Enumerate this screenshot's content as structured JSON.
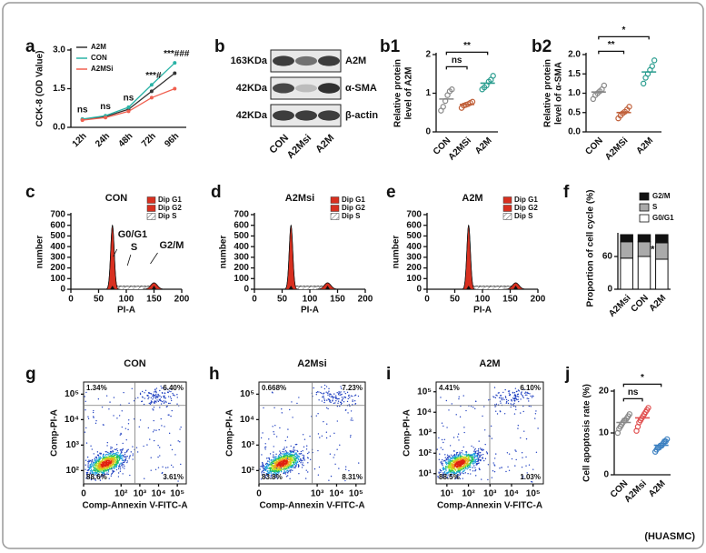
{
  "footer": "(HUASMC)",
  "chart_data": [
    {
      "type": "line",
      "panel": "a",
      "ylabel": "CCK-8 (OD Value)",
      "categories": [
        "12h",
        "24h",
        "48h",
        "72h",
        "96h"
      ],
      "series": [
        {
          "name": "A2M",
          "color": "#333333",
          "values": [
            0.3,
            0.42,
            0.7,
            1.4,
            2.1
          ]
        },
        {
          "name": "CON",
          "color": "#2ab3a6",
          "values": [
            0.32,
            0.45,
            0.78,
            1.65,
            2.5
          ]
        },
        {
          "name": "A2MSi",
          "color": "#f06050",
          "values": [
            0.28,
            0.38,
            0.62,
            1.15,
            1.5
          ]
        }
      ],
      "ylim": [
        0,
        3
      ],
      "yticks": [
        {
          "value": 0,
          "label": "0.0"
        },
        1.5,
        {
          "value": 3,
          "label": "3.0"
        }
      ],
      "annotations": [
        "ns",
        "ns",
        "ns",
        "***#",
        "***###"
      ]
    },
    {
      "type": "blot",
      "panel": "b",
      "weights": [
        "163KDa",
        "42KDa",
        "42KDa"
      ],
      "proteins": [
        "A2M",
        "α-SMA",
        "β-actin"
      ],
      "lanes": [
        "CON",
        "A2Msi",
        "A2M"
      ]
    },
    {
      "type": "dot",
      "panel": "b1",
      "ylabel": [
        "Relative protein",
        "level of A2M"
      ],
      "categories": [
        "CON",
        "A2MSi",
        "A2M"
      ],
      "colors": [
        "#888888",
        "#c0603a",
        "#2a9d8f"
      ],
      "values": [
        0.85,
        0.71,
        1.26
      ],
      "points": [
        [
          0.55,
          0.65,
          0.8,
          0.95,
          1.05,
          1.1
        ],
        [
          0.62,
          0.68,
          0.7,
          0.72,
          0.75,
          0.78
        ],
        [
          1.1,
          1.15,
          1.2,
          1.3,
          1.35,
          1.45
        ]
      ],
      "ylim": [
        0,
        2
      ],
      "yticks": [
        0,
        1,
        2
      ],
      "annotations": [
        "ns",
        "**"
      ]
    },
    {
      "type": "dot",
      "panel": "b2",
      "ylabel": [
        "Relative protein",
        "level of α-SMA"
      ],
      "categories": [
        "CON",
        "A2MSi",
        "A2M"
      ],
      "colors": [
        "#888888",
        "#c0603a",
        "#2a9d8f"
      ],
      "values": [
        1.03,
        0.5,
        1.55
      ],
      "points": [
        [
          0.85,
          0.95,
          1.0,
          1.05,
          1.1,
          1.2
        ],
        [
          0.35,
          0.42,
          0.48,
          0.52,
          0.58,
          0.65
        ],
        [
          1.25,
          1.4,
          1.5,
          1.6,
          1.7,
          1.85
        ]
      ],
      "ylim": [
        0,
        2
      ],
      "yticks": [
        {
          "value": 0,
          "label": "0.0"
        },
        0.5,
        {
          "value": 1,
          "label": "1.0"
        },
        1.5,
        {
          "value": 2,
          "label": "2.0"
        }
      ],
      "annotations": [
        "**",
        "*"
      ]
    },
    {
      "type": "histogram",
      "panel": "c",
      "title": "CON",
      "ylabel": "number",
      "xlabel": "PI-A",
      "xlim": [
        0,
        200
      ],
      "xticks": [
        0,
        50,
        100,
        150,
        200
      ],
      "ylim": [
        0,
        700
      ],
      "yticks": [
        0,
        100,
        200,
        300,
        400,
        500,
        600,
        700
      ],
      "legend": [
        "Dip G1",
        "Dip G2",
        "Dip S"
      ],
      "annotations": [
        "G0/G1",
        "S",
        "G2/M"
      ]
    },
    {
      "type": "histogram",
      "panel": "d",
      "title": "A2Msi",
      "ylabel": "number",
      "xlabel": "PI-A",
      "xlim": [
        0,
        200
      ],
      "xticks": [
        0,
        50,
        100,
        150,
        200
      ],
      "ylim": [
        0,
        700
      ],
      "yticks": [
        0,
        100,
        200,
        300,
        400,
        500,
        600,
        700
      ],
      "legend": [
        "Dip G1",
        "Dip G2",
        "Dip S"
      ]
    },
    {
      "type": "histogram",
      "panel": "e",
      "title": "A2M",
      "ylabel": "number",
      "xlabel": "PI-A",
      "xlim": [
        0,
        200
      ],
      "xticks": [
        0,
        50,
        100,
        150,
        200
      ],
      "ylim": [
        0,
        700
      ],
      "yticks": [
        0,
        100,
        200,
        300,
        400,
        500,
        600,
        700
      ],
      "legend": [
        "Dip G1",
        "Dip G2",
        "Dip S"
      ]
    },
    {
      "type": "stacked-bar",
      "panel": "f",
      "ylabel": "Proportion of cell cycle (%)",
      "categories": [
        "A2Msi",
        "CON",
        "A2M"
      ],
      "series": [
        {
          "name": "G0/G1",
          "color": "#ffffff",
          "values": [
            57,
            60,
            55
          ]
        },
        {
          "name": "S",
          "color": "#aaaaaa",
          "values": [
            30,
            27,
            30
          ]
        },
        {
          "name": "G2/M",
          "color": "#111111",
          "values": [
            13,
            13,
            15
          ]
        }
      ],
      "ylim": [
        0,
        100
      ],
      "yticks": [
        0,
        60
      ],
      "annotations": [
        "*"
      ]
    },
    {
      "type": "flow",
      "panel": "g",
      "title": "CON",
      "xlabel": "Comp-Annexin V-FITC-A",
      "ylabel": "Comp-PI-A",
      "xlim": [
        0,
        300000
      ],
      "ylim": [
        30,
        300000
      ],
      "xticks": [
        0,
        {
          "value": 100,
          "label": "10²"
        },
        {
          "value": 1000,
          "label": "10³"
        },
        {
          "value": 10000,
          "label": "10⁴"
        },
        {
          "value": 100000,
          "label": "10⁵"
        }
      ],
      "yticks": [
        {
          "value": 100,
          "label": "10²"
        },
        {
          "value": 1000,
          "label": "10³"
        },
        {
          "value": 10000,
          "label": "10⁴"
        },
        {
          "value": 100000,
          "label": "10⁵"
        }
      ],
      "quadrants": [
        "1.34%",
        "6.40%",
        "88.6%",
        "3.61%"
      ]
    },
    {
      "type": "flow",
      "panel": "h",
      "title": "A2Msi",
      "xlabel": "Comp-Annexin V-FITC-A",
      "ylabel": "Comp-PI-A",
      "xlim": [
        0,
        300000
      ],
      "ylim": [
        30,
        300000
      ],
      "xticks": [
        0,
        {
          "value": 1000,
          "label": "10³"
        },
        {
          "value": 10000,
          "label": "10⁴"
        },
        {
          "value": 100000,
          "label": "10⁵"
        }
      ],
      "yticks": [
        {
          "value": 100,
          "label": "10²"
        },
        {
          "value": 1000,
          "label": "10³"
        },
        {
          "value": 10000,
          "label": "10⁴"
        },
        {
          "value": 100000,
          "label": "10⁵"
        }
      ],
      "quadrants": [
        "0.668%",
        "7.23%",
        "83.8%",
        "8.31%"
      ]
    },
    {
      "type": "flow",
      "panel": "i",
      "title": "A2M",
      "xlabel": "Comp-Annexin V-FITC-A",
      "ylabel": "Comp-PI-A",
      "xlim": [
        5,
        300000
      ],
      "ylim": [
        5,
        300000
      ],
      "xticks": [
        {
          "value": 10,
          "label": "10¹"
        },
        {
          "value": 100,
          "label": "10²"
        },
        {
          "value": 1000,
          "label": "10³"
        },
        {
          "value": 10000,
          "label": "10⁴"
        },
        {
          "value": 100000,
          "label": "10⁵"
        }
      ],
      "yticks": [
        {
          "value": 10,
          "label": "10¹"
        },
        {
          "value": 100,
          "label": "10²"
        },
        {
          "value": 1000,
          "label": "10³"
        },
        {
          "value": 10000,
          "label": "10⁴"
        },
        {
          "value": 100000,
          "label": "10⁵"
        }
      ],
      "quadrants": [
        "4.41%",
        "6.10%",
        "88.5%",
        "1.03%"
      ]
    },
    {
      "type": "dot",
      "panel": "j",
      "ylabel": [
        "Cell apoptosis rate (%)"
      ],
      "categories": [
        "CON",
        "A2Msi",
        "A2M"
      ],
      "colors": [
        "#888888",
        "#e05050",
        "#3a7fc0"
      ],
      "values": [
        12.5,
        13.6,
        7.05
      ],
      "points": [
        [
          10,
          11,
          11.5,
          12,
          12.5,
          13,
          13,
          13.5,
          14,
          14.5
        ],
        [
          10.5,
          11.5,
          12.5,
          13,
          13.5,
          14,
          14.5,
          15,
          15.5,
          16
        ],
        [
          5.5,
          6,
          6.5,
          6.5,
          7,
          7,
          7.5,
          8,
          8,
          8.5
        ]
      ],
      "ylim": [
        0,
        20
      ],
      "yticks": [
        0,
        10,
        20
      ],
      "annotations": [
        "ns",
        "*"
      ]
    }
  ]
}
